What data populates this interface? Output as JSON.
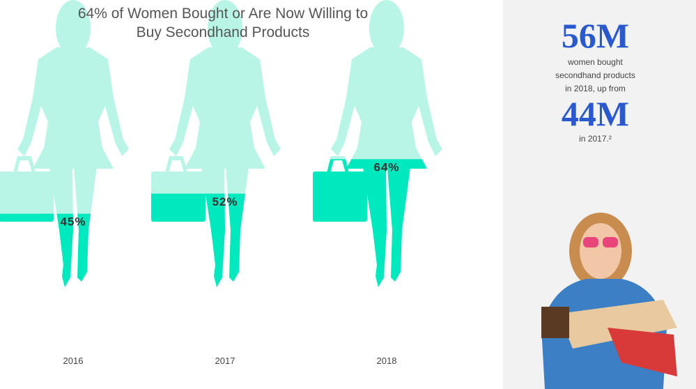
{
  "chart_data": {
    "type": "pictogram",
    "title": "64% of Women Bought or Are Now Willing to Buy Secondhand Products",
    "categories": [
      "2016",
      "2017",
      "2018"
    ],
    "values": [
      45,
      52,
      64
    ],
    "value_labels": [
      "45%",
      "52%",
      "64%"
    ],
    "ylim": [
      0,
      100
    ],
    "color": "#00e8bd",
    "background_color": "#b8f5e6"
  },
  "sidebar": {
    "headline": "56M",
    "text": "women bought secondhand products in 2018, up from",
    "previous": "44M",
    "note": "in 2017.²"
  }
}
